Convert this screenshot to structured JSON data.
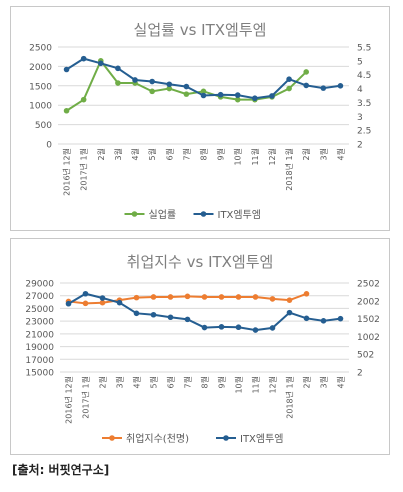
{
  "source": "[출처: 버핏연구소]",
  "chart_data": [
    {
      "type": "line",
      "title": "실업률 vs ITX엠투엠",
      "x": [
        "2016년 12월",
        "2017년 1월",
        "2월",
        "3월",
        "4월",
        "5월",
        "6월",
        "7월",
        "8월",
        "9월",
        "10월",
        "11월",
        "12월",
        "2018년 1월",
        "2월",
        "3월",
        "4월"
      ],
      "x_ticks": [
        [
          "2016년 12월"
        ],
        [
          "2017년 1월"
        ],
        [
          "2월"
        ],
        [
          "3월"
        ],
        [
          "4월"
        ],
        [
          "5월"
        ],
        [
          "6월"
        ],
        [
          "7월"
        ],
        [
          "8월"
        ],
        [
          "9월"
        ],
        [
          "10월"
        ],
        [
          "11월"
        ],
        [
          "12월"
        ],
        [
          "2018년 1월"
        ],
        [
          "2월"
        ],
        [
          "3월"
        ],
        [
          "4월"
        ]
      ],
      "yleft": {
        "lim": [
          0,
          2500
        ],
        "ticks": [
          "0",
          "500",
          "1000",
          "1500",
          "2000",
          "2500"
        ]
      },
      "yright": {
        "lim": [
          2,
          5.5
        ],
        "ticks": [
          "2",
          "2.5",
          "3",
          "3.5",
          "4",
          "4.5",
          "5",
          "5.5"
        ]
      },
      "grid": true,
      "legend": "bottom",
      "series": [
        {
          "name": "실업률",
          "axis": "right",
          "color": "#70ad47",
          "values": [
            3.2,
            3.6,
            5.0,
            4.2,
            4.2,
            3.9,
            4.0,
            3.8,
            3.9,
            3.7,
            3.6,
            3.6,
            3.7,
            4.0,
            4.6,
            null,
            null
          ]
        },
        {
          "name": "ITX엠투엠",
          "axis": "left",
          "color": "#255e91",
          "values": [
            1920,
            2200,
            2080,
            1950,
            1650,
            1610,
            1540,
            1480,
            1250,
            1270,
            1260,
            1180,
            1240,
            1670,
            1510,
            1440,
            1500
          ]
        }
      ]
    },
    {
      "type": "line",
      "title": "취업지수 vs ITX엠투엠",
      "x": [
        "2016년 12월",
        "2017년 1월",
        "2월",
        "3월",
        "4월",
        "5월",
        "6월",
        "7월",
        "8월",
        "9월",
        "10월",
        "11월",
        "12월",
        "2018년 1월",
        "2월",
        "3월",
        "4월"
      ],
      "x_ticks": [
        [
          "2016년 12월"
        ],
        [
          "2017년 1월"
        ],
        [
          "2월"
        ],
        [
          "3월"
        ],
        [
          "4월"
        ],
        [
          "5월"
        ],
        [
          "6월"
        ],
        [
          "7월"
        ],
        [
          "8월"
        ],
        [
          "9월"
        ],
        [
          "10월"
        ],
        [
          "11월"
        ],
        [
          "12월"
        ],
        [
          "2018년 1월"
        ],
        [
          "2월"
        ],
        [
          "3월"
        ],
        [
          "4월"
        ]
      ],
      "yleft": {
        "lim": [
          15000,
          29000
        ],
        "ticks": [
          "15000",
          "17000",
          "19000",
          "21000",
          "23000",
          "25000",
          "27000",
          "29000"
        ]
      },
      "yright": {
        "lim": [
          2,
          2502
        ],
        "ticks": [
          "2",
          "502",
          "1002",
          "1502",
          "2002",
          "2502"
        ]
      },
      "grid": true,
      "legend": "bottom",
      "series": [
        {
          "name": "취업지수(천명)",
          "axis": "left",
          "color": "#ed7d31",
          "values": [
            26100,
            25800,
            25900,
            26300,
            26700,
            26800,
            26800,
            26900,
            26800,
            26800,
            26800,
            26800,
            26500,
            26300,
            27300,
            null,
            null
          ]
        },
        {
          "name": "ITX엠투엠",
          "axis": "right",
          "color": "#255e91",
          "values": [
            1920,
            2200,
            2080,
            1950,
            1650,
            1610,
            1540,
            1480,
            1250,
            1270,
            1260,
            1180,
            1240,
            1670,
            1510,
            1440,
            1500
          ]
        }
      ]
    }
  ]
}
